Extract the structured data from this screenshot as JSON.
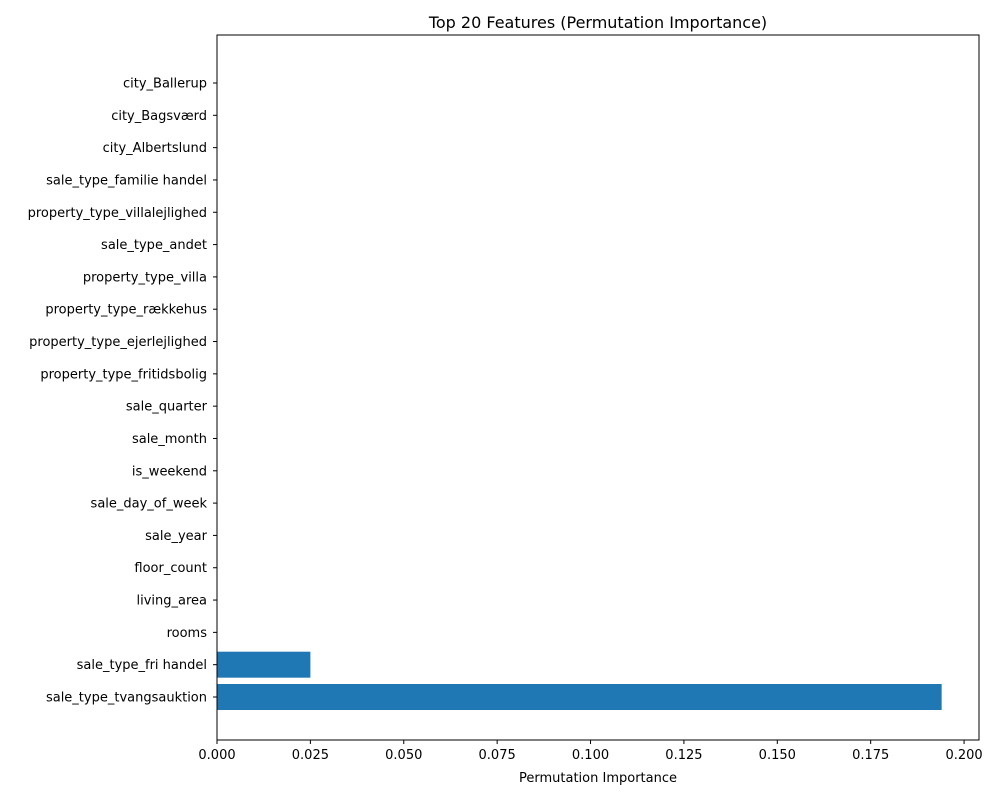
{
  "chart_data": {
    "type": "bar",
    "orientation": "horizontal",
    "title": "Top 20 Features (Permutation Importance)",
    "xlabel": "Permutation Importance",
    "ylabel": "",
    "xlim": [
      0,
      0.204
    ],
    "x_ticks": [
      "0.000",
      "0.025",
      "0.050",
      "0.075",
      "0.100",
      "0.125",
      "0.150",
      "0.175",
      "0.200"
    ],
    "x_tick_values": [
      0,
      0.025,
      0.05,
      0.075,
      0.1,
      0.125,
      0.15,
      0.175,
      0.2
    ],
    "categories": [
      "sale_type_tvangsauktion",
      "sale_type_fri handel",
      "rooms",
      "living_area",
      "floor_count",
      "sale_year",
      "sale_day_of_week",
      "is_weekend",
      "sale_month",
      "sale_quarter",
      "property_type_fritidsbolig",
      "property_type_ejerlejlighed",
      "property_type_rækkehus",
      "property_type_villa",
      "sale_type_andet",
      "property_type_villalejlighed",
      "sale_type_familie handel",
      "city_Albertslund",
      "city_Bagsværd",
      "city_Ballerup"
    ],
    "values": [
      0.194,
      0.025,
      0,
      0,
      0,
      0,
      0,
      0,
      0,
      0,
      0,
      0,
      0,
      0,
      0,
      0,
      0,
      0,
      0,
      0
    ],
    "bar_color": "#1f77b4",
    "grid": false,
    "legend": "none"
  }
}
